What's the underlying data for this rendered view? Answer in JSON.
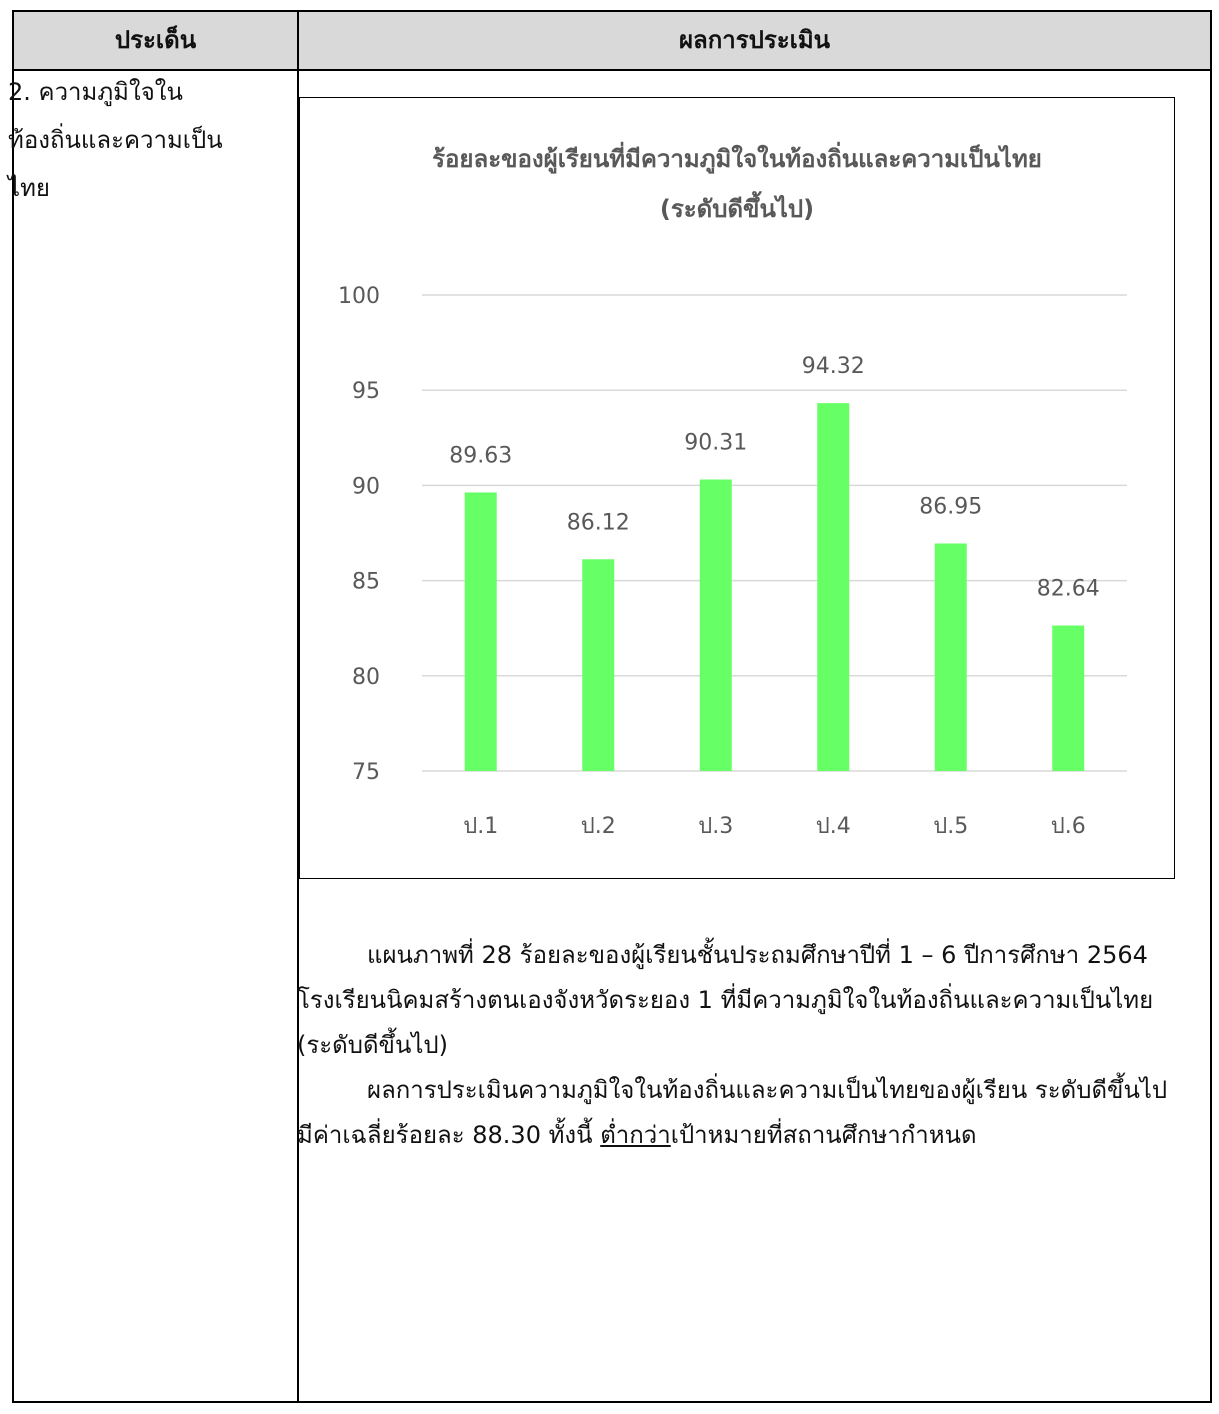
{
  "table": {
    "header_left": "ประเด็น",
    "header_right": "ผลการประเมิน",
    "topic_line1": "2. ความภูมิใจใน",
    "topic_line2": "ท้องถิ่นและความเป็น",
    "topic_line3": "ไทย"
  },
  "chart_data": {
    "type": "bar",
    "title_line1": "ร้อยละของผู้เรียนที่มีความภูมิใจในท้องถิ่นและความเป็นไทย",
    "title_line2": "(ระดับดีขึ้นไป)",
    "categories": [
      "ป.1",
      "ป.2",
      "ป.3",
      "ป.4",
      "ป.5",
      "ป.6"
    ],
    "values": [
      89.63,
      86.12,
      90.31,
      94.32,
      86.95,
      82.64
    ],
    "value_labels": [
      "89.63",
      "86.12",
      "90.31",
      "94.32",
      "86.95",
      "82.64"
    ],
    "ylim": [
      75,
      100
    ],
    "yticks": [
      75,
      80,
      85,
      90,
      95,
      100
    ],
    "grid": true,
    "bar_color": "#66ff66",
    "grid_color": "#d9d9d9",
    "text_color": "#595959"
  },
  "caption": {
    "p1": "แผนภาพที่ 28 ร้อยละของผู้เรียนชั้นประถมศึกษาปีที่ 1 – 6 ปีการศึกษา 2564 โรงเรียนนิคมสร้างตนเองจังหวัดระยอง 1 ที่มีความภูมิใจในท้องถิ่นและความเป็นไทย (ระดับดีขึ้นไป)",
    "p2_before": "ผลการประเมินความภูมิใจในท้องถิ่นและความเป็นไทยของผู้เรียน ระดับดีขึ้นไป มีค่าเฉลี่ยร้อยละ 88.30 ทั้งนี้ ",
    "p2_underlined": "ต่ำกว่า",
    "p2_after": "เป้าหมายที่สถานศึกษากำหนด"
  }
}
